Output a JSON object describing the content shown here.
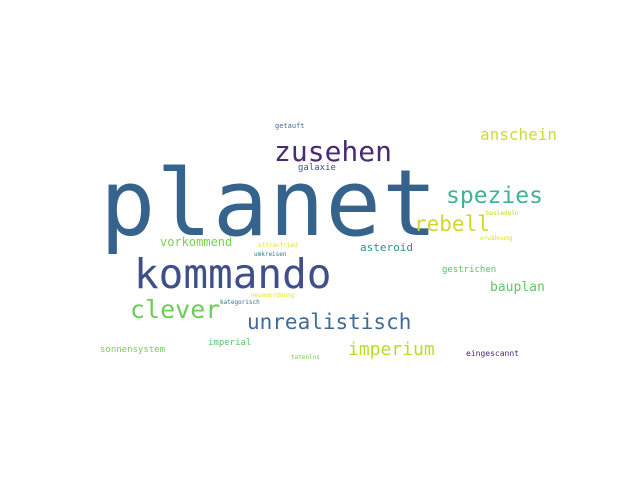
{
  "word_cloud": {
    "words": [
      {
        "text": "planet",
        "color": "#35638c"
      },
      {
        "text": "kommando",
        "color": "#3f4f8a"
      },
      {
        "text": "zusehen",
        "color": "#4a2a73"
      },
      {
        "text": "spezies",
        "color": "#3fb39a"
      },
      {
        "text": "rebell",
        "color": "#d6d52d"
      },
      {
        "text": "anschein",
        "color": "#c6df30"
      },
      {
        "text": "clever",
        "color": "#6dcd5a"
      },
      {
        "text": "unrealistisch",
        "color": "#3e6c96"
      },
      {
        "text": "imperium",
        "color": "#b5de2b"
      },
      {
        "text": "vorkommend",
        "color": "#7ad151"
      },
      {
        "text": "bauplan",
        "color": "#5ec862"
      },
      {
        "text": "asteroid",
        "color": "#2f8f8a"
      },
      {
        "text": "gestrichen",
        "color": "#52c569"
      },
      {
        "text": "sonnensystem",
        "color": "#73d056"
      },
      {
        "text": "imperial",
        "color": "#55c667"
      },
      {
        "text": "eingescannt",
        "color": "#482979"
      },
      {
        "text": "galaxie",
        "color": "#3b528b"
      },
      {
        "text": "getauft",
        "color": "#3f6a97"
      },
      {
        "text": "umkreisen",
        "color": "#2a788e"
      },
      {
        "text": "kategorisch",
        "color": "#2b768e"
      },
      {
        "text": "tatenlos",
        "color": "#77d153"
      },
      {
        "text": "störanfried",
        "color": "#e2e418"
      },
      {
        "text": "besiedeln",
        "color": "#b8de29"
      },
      {
        "text": "erwähnung",
        "color": "#dde318"
      },
      {
        "text": "neuanordnung",
        "color": "#e8e419"
      }
    ]
  }
}
